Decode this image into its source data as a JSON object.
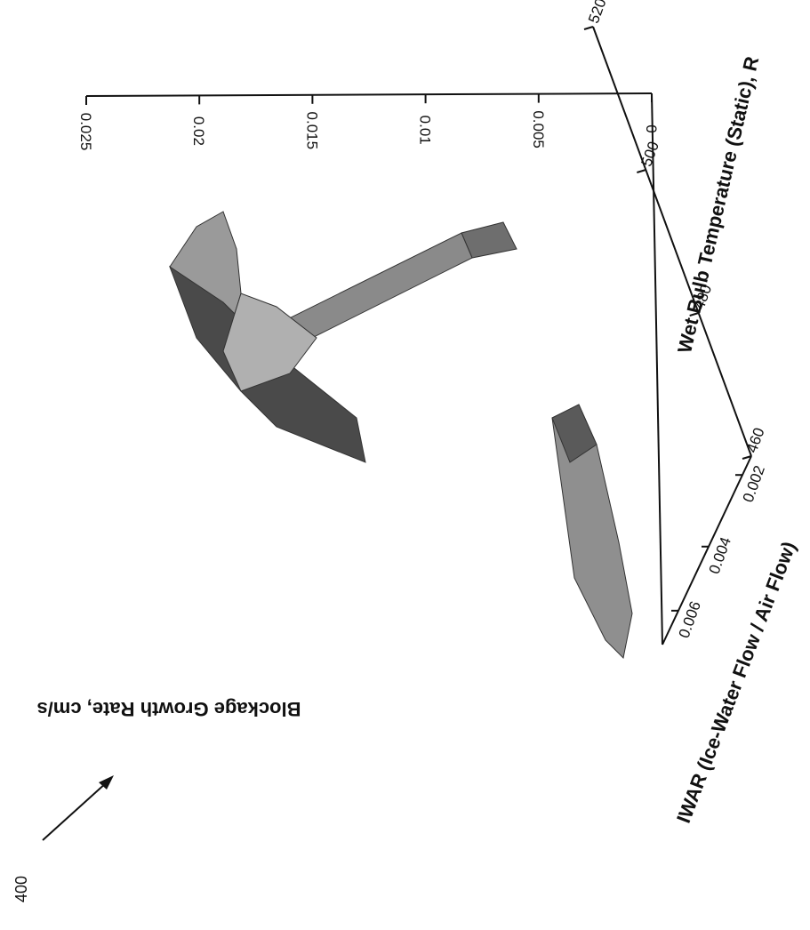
{
  "figure_ref": "400",
  "chart_data": {
    "type": "surface3d",
    "zlabel": "Blockage Growth Rate, cm/s",
    "xlabel": "IWAR (Ice-Water Flow / Air Flow)",
    "ylabel": "Wet Bulb Temperature (Static), R",
    "z_ticks": [
      "0",
      "0.005",
      "0.01",
      "0.015",
      "0.02",
      "0.025"
    ],
    "x_ticks": [
      "0.002",
      "0.004",
      "0.006"
    ],
    "y_ticks": [
      "460",
      "480",
      "500",
      "520"
    ],
    "zlim": [
      0,
      0.025
    ],
    "xlim": [
      0.001,
      0.007
    ],
    "ylim": [
      460,
      520
    ],
    "grid": false,
    "colors": {
      "surface_dark": "#3a3a3a",
      "surface_mid": "#7d7d7d",
      "surface_light": "#b4b4b4",
      "axis": "#111111"
    },
    "surfaces": [
      {
        "description_free": true,
        "profile_iwar_rate": [
          {
            "iwar": 0.0025,
            "rate": 0.003
          },
          {
            "iwar": 0.006,
            "rate": 0.0035
          },
          {
            "iwar": 0.0065,
            "rate": 0.004
          }
        ]
      },
      {
        "profile_temp_rate": [
          {
            "temp": 462,
            "rate": 0.004
          },
          {
            "temp": 470,
            "rate": 0.012
          },
          {
            "temp": 485,
            "rate": 0.019
          },
          {
            "temp": 500,
            "rate": 0.024
          }
        ]
      }
    ]
  }
}
